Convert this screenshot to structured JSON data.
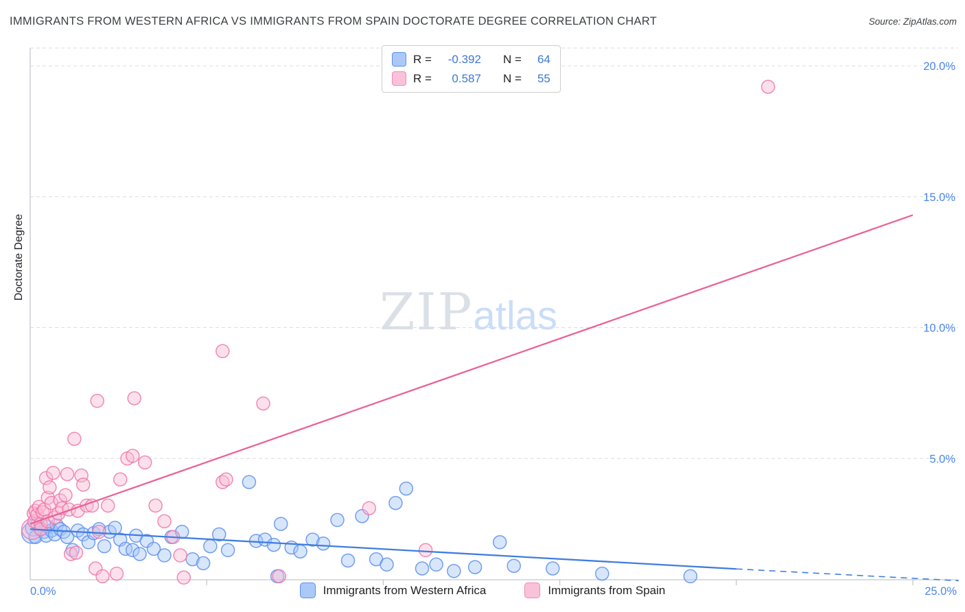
{
  "header": {
    "title": "IMMIGRANTS FROM WESTERN AFRICA VS IMMIGRANTS FROM SPAIN DOCTORATE DEGREE CORRELATION CHART",
    "source": "Source: ZipAtlas.com"
  },
  "watermark": {
    "zip": "ZIP",
    "atlas": "atlas"
  },
  "correlation_legend": {
    "rows": [
      {
        "series": "Immigrants from Western Africa",
        "r_label": "R =",
        "r_value": "-0.392",
        "n_label": "N =",
        "n_value": "64"
      },
      {
        "series": "Immigrants from Spain",
        "r_label": "R =",
        "r_value": "0.587",
        "n_label": "N =",
        "n_value": "55"
      }
    ]
  },
  "series_legend": [
    {
      "label": "Immigrants from Western Africa"
    },
    {
      "label": "Immigrants from Spain"
    }
  ],
  "axes": {
    "x_left_label": "0.0%",
    "x_right_label": "25.0%",
    "y_ticks": [
      {
        "value": 20,
        "label": "20.0%"
      },
      {
        "value": 15,
        "label": "15.0%"
      },
      {
        "value": 10,
        "label": "10.0%"
      },
      {
        "value": 5,
        "label": "5.0%"
      }
    ],
    "x_tick_values": [
      5,
      10,
      15,
      20,
      25
    ]
  },
  "chart_data": {
    "type": "scatter",
    "title": "IMMIGRANTS FROM WESTERN AFRICA VS IMMIGRANTS FROM SPAIN DOCTORATE DEGREE CORRELATION CHART",
    "xlabel": "",
    "ylabel": "Doctorate Degree",
    "xlim": [
      0,
      26.3
    ],
    "ylim": [
      -0.4,
      20.8
    ],
    "grid": "horizontal-dashed",
    "legend_position": "top-center and bottom-center",
    "correlations": [
      {
        "series": "Immigrants from Western Africa",
        "r": -0.392,
        "n": 64
      },
      {
        "series": "Immigrants from Spain",
        "r": 0.587,
        "n": 55
      }
    ],
    "series": [
      {
        "name": "Immigrants from Western Africa",
        "color": "#5b8def",
        "fill": "#a9c7f7",
        "points": [
          [
            0.05,
            2.15,
            15
          ],
          [
            0.1,
            2.35,
            12
          ],
          [
            0.15,
            2.0
          ],
          [
            0.2,
            2.5
          ],
          [
            0.3,
            2.3
          ],
          [
            0.4,
            2.2
          ],
          [
            0.45,
            2.05
          ],
          [
            0.5,
            2.4
          ],
          [
            0.6,
            2.25
          ],
          [
            0.7,
            2.1
          ],
          [
            0.75,
            2.45
          ],
          [
            0.85,
            2.3
          ],
          [
            0.95,
            2.2
          ],
          [
            1.05,
            2.0
          ],
          [
            1.2,
            1.5
          ],
          [
            1.35,
            2.25
          ],
          [
            1.5,
            2.1
          ],
          [
            1.65,
            1.8
          ],
          [
            1.8,
            2.15
          ],
          [
            1.95,
            2.3
          ],
          [
            2.1,
            1.65
          ],
          [
            2.25,
            2.2
          ],
          [
            2.4,
            2.35
          ],
          [
            2.55,
            1.9
          ],
          [
            2.7,
            1.55
          ],
          [
            2.9,
            1.5
          ],
          [
            3.0,
            2.05
          ],
          [
            3.1,
            1.35
          ],
          [
            3.3,
            1.85
          ],
          [
            3.5,
            1.55
          ],
          [
            3.8,
            1.3
          ],
          [
            4.0,
            2.0
          ],
          [
            4.3,
            2.2
          ],
          [
            4.6,
            1.15
          ],
          [
            4.9,
            1.0
          ],
          [
            5.1,
            1.65
          ],
          [
            5.35,
            2.1
          ],
          [
            5.6,
            1.5
          ],
          [
            6.2,
            4.1
          ],
          [
            6.4,
            1.85
          ],
          [
            6.65,
            1.9
          ],
          [
            6.9,
            1.7
          ],
          [
            7.0,
            0.5
          ],
          [
            7.1,
            2.5
          ],
          [
            7.4,
            1.6
          ],
          [
            7.65,
            1.45
          ],
          [
            8.0,
            1.9
          ],
          [
            8.3,
            1.75
          ],
          [
            8.7,
            2.65
          ],
          [
            9.0,
            1.1
          ],
          [
            9.4,
            2.8
          ],
          [
            9.8,
            1.15
          ],
          [
            10.1,
            0.95
          ],
          [
            10.35,
            3.3
          ],
          [
            10.65,
            3.85
          ],
          [
            11.1,
            0.8
          ],
          [
            11.5,
            0.95
          ],
          [
            12.0,
            0.7
          ],
          [
            12.6,
            0.85
          ],
          [
            13.3,
            1.8
          ],
          [
            13.7,
            0.9
          ],
          [
            14.8,
            0.8
          ],
          [
            16.2,
            0.6
          ],
          [
            18.7,
            0.5
          ]
        ]
      },
      {
        "name": "Immigrants from Spain",
        "color": "#f075a8",
        "fill": "#f8bcd4",
        "points": [
          [
            0.05,
            2.3,
            15
          ],
          [
            0.1,
            2.9
          ],
          [
            0.12,
            2.6
          ],
          [
            0.15,
            3.0
          ],
          [
            0.2,
            2.85
          ],
          [
            0.25,
            3.15
          ],
          [
            0.3,
            2.5
          ],
          [
            0.3,
            2.3
          ],
          [
            0.35,
            2.95
          ],
          [
            0.4,
            3.05
          ],
          [
            0.45,
            4.25
          ],
          [
            0.5,
            3.5
          ],
          [
            0.5,
            2.6
          ],
          [
            0.55,
            3.9
          ],
          [
            0.6,
            3.3
          ],
          [
            0.65,
            4.45
          ],
          [
            0.7,
            2.75
          ],
          [
            0.8,
            2.9
          ],
          [
            0.85,
            3.4
          ],
          [
            0.9,
            3.1
          ],
          [
            1.0,
            3.6
          ],
          [
            1.05,
            4.4
          ],
          [
            1.1,
            3.05
          ],
          [
            1.15,
            1.35
          ],
          [
            1.25,
            5.75
          ],
          [
            1.3,
            1.4
          ],
          [
            1.35,
            3.0
          ],
          [
            1.45,
            4.35
          ],
          [
            1.5,
            4.0
          ],
          [
            1.6,
            3.2
          ],
          [
            1.75,
            3.2
          ],
          [
            1.85,
            0.8
          ],
          [
            1.9,
            7.2
          ],
          [
            1.95,
            2.2
          ],
          [
            2.05,
            0.5
          ],
          [
            2.2,
            3.2
          ],
          [
            2.45,
            0.6
          ],
          [
            2.55,
            4.2
          ],
          [
            2.75,
            5.0
          ],
          [
            2.9,
            5.1
          ],
          [
            2.95,
            7.3
          ],
          [
            3.25,
            4.85
          ],
          [
            3.55,
            3.2
          ],
          [
            3.8,
            2.6
          ],
          [
            4.05,
            2.0
          ],
          [
            4.25,
            1.3
          ],
          [
            4.35,
            0.45
          ],
          [
            5.45,
            9.1
          ],
          [
            5.45,
            4.1
          ],
          [
            5.55,
            4.2
          ],
          [
            6.6,
            7.1
          ],
          [
            7.05,
            0.5
          ],
          [
            9.6,
            3.1
          ],
          [
            11.2,
            1.5
          ],
          [
            20.9,
            19.2
          ]
        ]
      }
    ],
    "trend_lines": [
      {
        "series": "Immigrants from Western Africa",
        "color": "#3f7de0",
        "solid": [
          [
            0,
            2.3
          ],
          [
            20,
            0.78
          ]
        ],
        "dashed": [
          [
            20,
            0.78
          ],
          [
            26.3,
            0.33
          ]
        ]
      },
      {
        "series": "Immigrants from Spain",
        "color": "#e86397",
        "solid": [
          [
            0,
            2.5
          ],
          [
            25,
            14.3
          ]
        ]
      }
    ]
  }
}
